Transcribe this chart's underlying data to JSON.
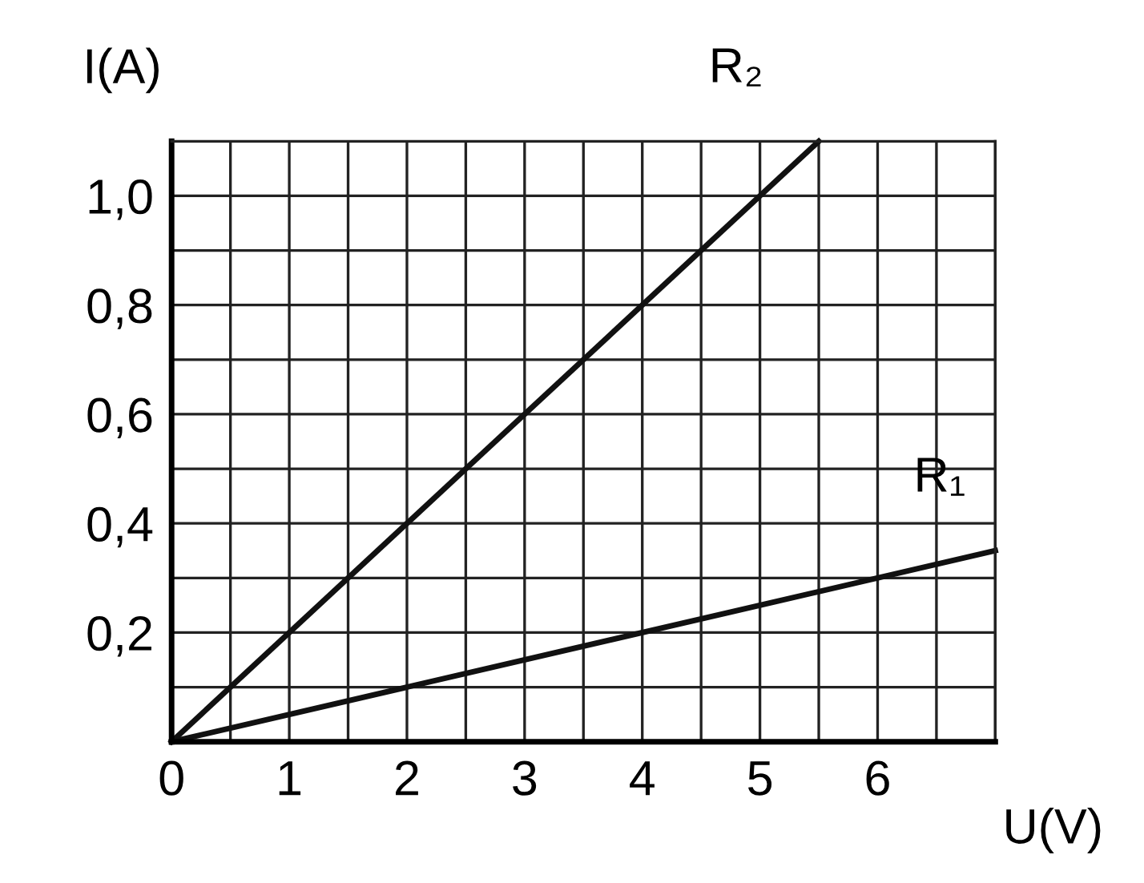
{
  "chart_data": {
    "type": "line",
    "xlabel": "U(V)",
    "ylabel": "I(A)",
    "xlim": [
      0,
      7
    ],
    "ylim": [
      0,
      1.1
    ],
    "xticks": [
      0,
      {
        "value": 0.5,
        "label": null
      },
      1,
      {
        "value": 1.5,
        "label": null
      },
      2,
      {
        "value": 2.5,
        "label": null
      },
      3,
      {
        "value": 3.5,
        "label": null
      },
      4,
      {
        "value": 4.5,
        "label": null
      },
      5,
      {
        "value": 5.5,
        "label": null
      },
      6,
      {
        "value": 6.5,
        "label": null
      },
      {
        "value": 7,
        "label": null
      }
    ],
    "yticks": [
      {
        "value": 0,
        "label": null
      },
      {
        "value": 0.1,
        "label": null
      },
      {
        "value": 0.2,
        "label": "0,2"
      },
      {
        "value": 0.3,
        "label": null
      },
      {
        "value": 0.4,
        "label": "0,4"
      },
      {
        "value": 0.5,
        "label": null
      },
      {
        "value": 0.6,
        "label": "0,6"
      },
      {
        "value": 0.7,
        "label": null
      },
      {
        "value": 0.8,
        "label": "0,8"
      },
      {
        "value": 0.9,
        "label": null
      },
      {
        "value": 1.0,
        "label": "1,0"
      },
      {
        "value": 1.1,
        "label": null
      }
    ],
    "grid": true,
    "marker": "none",
    "line_style": "solid",
    "series": [
      {
        "name": "R₂",
        "color": "#111111",
        "x": [
          0,
          5.5
        ],
        "values": [
          0,
          1.1
        ]
      },
      {
        "name": "R₁",
        "color": "#111111",
        "x": [
          0,
          7
        ],
        "values": [
          0,
          0.35
        ]
      }
    ]
  }
}
